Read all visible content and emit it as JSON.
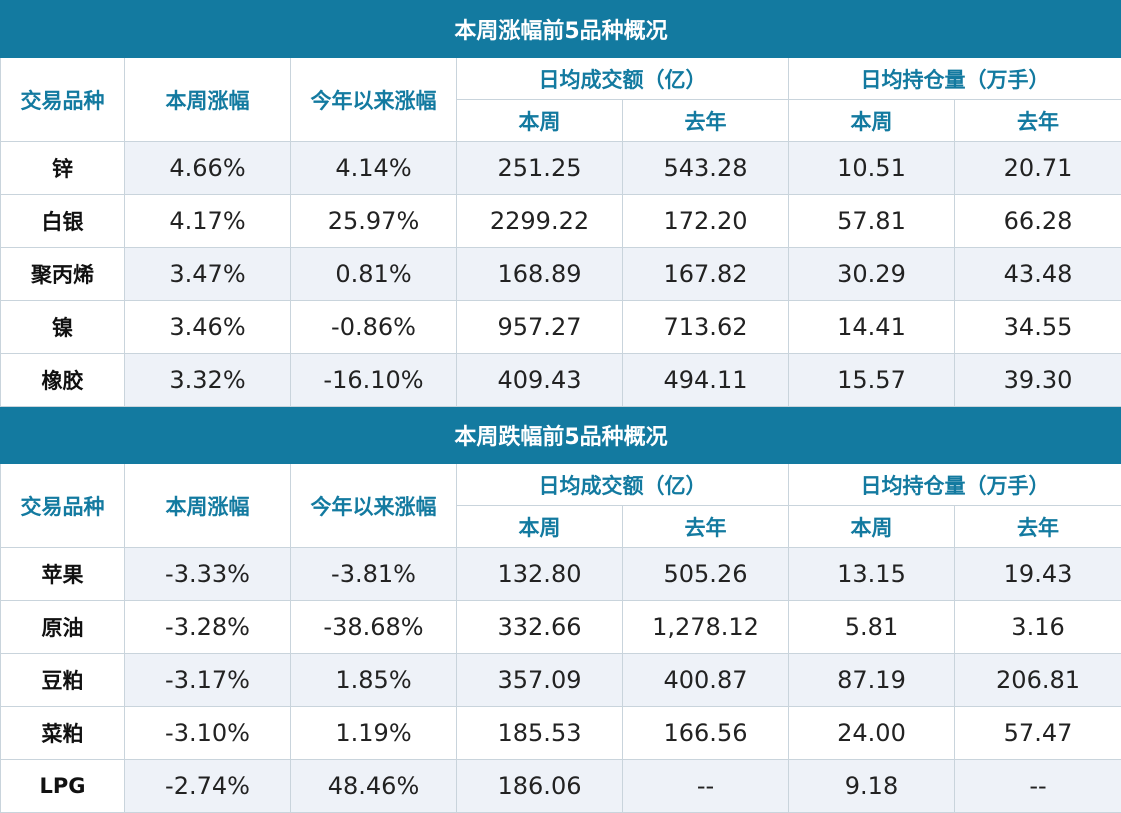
{
  "sections": [
    {
      "title": "本周涨幅前5品种概况",
      "headers": {
        "variety": "交易品种",
        "week_change": "本周涨幅",
        "ytd_change": "今年以来涨幅",
        "avg_turnover": "日均成交额（亿）",
        "avg_open_interest": "日均持仓量（万手）",
        "this_week": "本周",
        "last_year": "去年"
      },
      "rows": [
        {
          "name": "锌",
          "week": "4.66%",
          "ytd": "4.14%",
          "turnover_week": "251.25",
          "turnover_last_year": "543.28",
          "oi_week": "10.51",
          "oi_last_year": "20.71"
        },
        {
          "name": "白银",
          "week": "4.17%",
          "ytd": "25.97%",
          "turnover_week": "2299.22",
          "turnover_last_year": "172.20",
          "oi_week": "57.81",
          "oi_last_year": "66.28"
        },
        {
          "name": "聚丙烯",
          "week": "3.47%",
          "ytd": "0.81%",
          "turnover_week": "168.89",
          "turnover_last_year": "167.82",
          "oi_week": "30.29",
          "oi_last_year": "43.48"
        },
        {
          "name": "镍",
          "week": "3.46%",
          "ytd": "-0.86%",
          "turnover_week": "957.27",
          "turnover_last_year": "713.62",
          "oi_week": "14.41",
          "oi_last_year": "34.55"
        },
        {
          "name": "橡胶",
          "week": "3.32%",
          "ytd": "-16.10%",
          "turnover_week": "409.43",
          "turnover_last_year": "494.11",
          "oi_week": "15.57",
          "oi_last_year": "39.30"
        }
      ]
    },
    {
      "title": "本周跌幅前5品种概况",
      "headers": {
        "variety": "交易品种",
        "week_change": "本周涨幅",
        "ytd_change": "今年以来涨幅",
        "avg_turnover": "日均成交额（亿）",
        "avg_open_interest": "日均持仓量（万手）",
        "this_week": "本周",
        "last_year": "去年"
      },
      "rows": [
        {
          "name": "苹果",
          "week": "-3.33%",
          "ytd": "-3.81%",
          "turnover_week": "132.80",
          "turnover_last_year": "505.26",
          "oi_week": "13.15",
          "oi_last_year": "19.43"
        },
        {
          "name": "原油",
          "week": "-3.28%",
          "ytd": "-38.68%",
          "turnover_week": "332.66",
          "turnover_last_year": "1,278.12",
          "oi_week": "5.81",
          "oi_last_year": "3.16"
        },
        {
          "name": "豆粕",
          "week": "-3.17%",
          "ytd": "1.85%",
          "turnover_week": "357.09",
          "turnover_last_year": "400.87",
          "oi_week": "87.19",
          "oi_last_year": "206.81"
        },
        {
          "name": "菜粕",
          "week": "-3.10%",
          "ytd": "1.19%",
          "turnover_week": "185.53",
          "turnover_last_year": "166.56",
          "oi_week": "24.00",
          "oi_last_year": "57.47"
        },
        {
          "name": "LPG",
          "week": "-2.74%",
          "ytd": "48.46%",
          "turnover_week": "186.06",
          "turnover_last_year": "--",
          "oi_week": "9.18",
          "oi_last_year": "--"
        }
      ]
    }
  ],
  "colors": {
    "title_bg": "#137aa0",
    "header_text": "#137aa0",
    "alt_row_bg": "#eef2f8"
  }
}
